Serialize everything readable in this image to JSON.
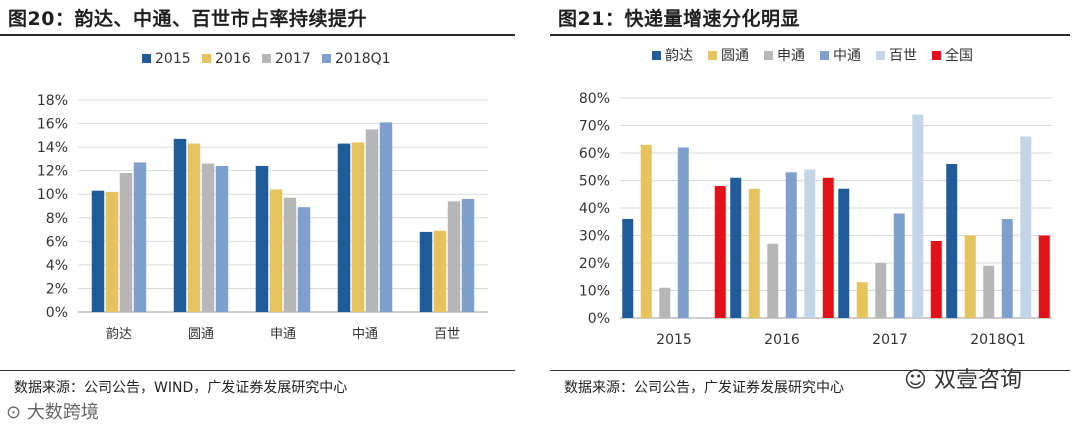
{
  "panels": {
    "left": {
      "title": "图20：韵达、中通、百世市占率持续提升",
      "source": "数据来源：公司公告，WIND，广发证券发展研究中心"
    },
    "right": {
      "title": "图21：快递量增速分化明显",
      "source": "数据来源：公司公告，广发证券发展研究中心"
    }
  },
  "watermarks": {
    "left": "大数跨境",
    "right": "双壹咨询"
  },
  "chart_data": [
    {
      "type": "bar",
      "categories": [
        "韵达",
        "圆通",
        "申通",
        "中通",
        "百世"
      ],
      "series": [
        {
          "name": "2015",
          "color": "#1f5c99",
          "values": [
            10.3,
            14.7,
            12.4,
            14.3,
            6.8
          ]
        },
        {
          "name": "2016",
          "color": "#e6c35c",
          "values": [
            10.2,
            14.3,
            10.4,
            14.4,
            6.9
          ]
        },
        {
          "name": "2017",
          "color": "#b7b7b7",
          "values": [
            11.8,
            12.6,
            9.7,
            15.5,
            9.4
          ]
        },
        {
          "name": "2018Q1",
          "color": "#7f9fcf",
          "values": [
            12.7,
            12.4,
            8.9,
            16.1,
            9.6
          ]
        }
      ],
      "ylim": [
        0,
        18
      ],
      "ystep": 2,
      "yformat": "percent",
      "grid": true,
      "legend": "top"
    },
    {
      "type": "bar",
      "categories": [
        "2015",
        "2016",
        "2017",
        "2018Q1"
      ],
      "series": [
        {
          "name": "韵达",
          "color": "#1f5c99",
          "values": [
            36,
            51,
            47,
            56
          ]
        },
        {
          "name": "圆通",
          "color": "#e6c35c",
          "values": [
            63,
            47,
            13,
            30
          ]
        },
        {
          "name": "申通",
          "color": "#b7b7b7",
          "values": [
            11,
            27,
            20,
            19
          ]
        },
        {
          "name": "中通",
          "color": "#7f9fcf",
          "values": [
            62,
            53,
            38,
            36
          ]
        },
        {
          "name": "百世",
          "color": "#c5d5e8",
          "values": [
            0,
            54,
            74,
            66
          ]
        },
        {
          "name": "全国",
          "color": "#e3121a",
          "values": [
            48,
            51,
            28,
            30
          ]
        }
      ],
      "ylim": [
        0,
        80
      ],
      "ystep": 10,
      "yformat": "percent",
      "grid": true,
      "legend": "top"
    }
  ]
}
